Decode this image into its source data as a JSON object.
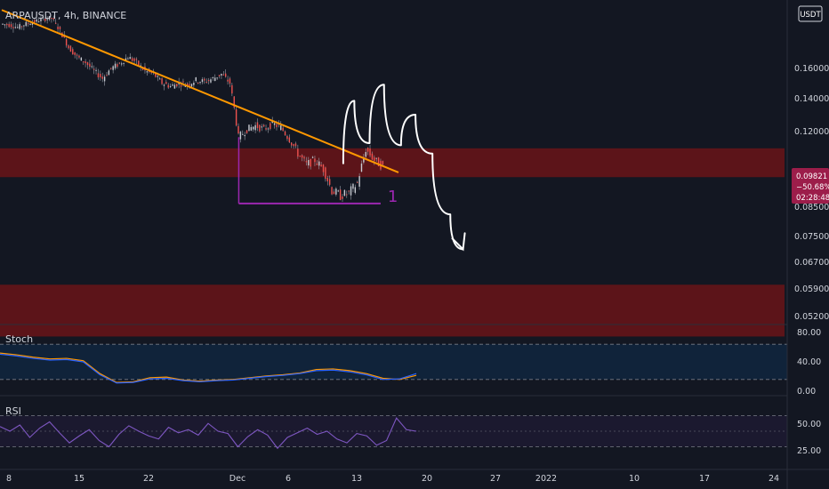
{
  "chart_data": {
    "type": "candlestick",
    "title": "ARPAUSDT, 4h, BINANCE",
    "symbol": "ARPAUSDT",
    "interval": "4h",
    "exchange": "BINANCE",
    "currency_badge": "USDT",
    "x_ticks": [
      "8",
      "15",
      "22",
      "Dec",
      "6",
      "13",
      "20",
      "27",
      "2022",
      "10",
      "17",
      "24"
    ],
    "y_ticks": [
      "0.16000",
      "0.14000",
      "0.12000",
      "0.09821",
      "0.08500",
      "0.07500",
      "0.06700",
      "0.05900",
      "0.05200"
    ],
    "ylim": [
      0.05,
      0.2
    ],
    "last_price": {
      "value": "0.09821",
      "change": "−50.68%",
      "countdown": "02:28:48",
      "color": "#9c1d4a"
    },
    "price_series": [
      0.187,
      0.186,
      0.184,
      0.187,
      0.189,
      0.191,
      0.192,
      0.181,
      0.168,
      0.161,
      0.157,
      0.151,
      0.146,
      0.153,
      0.156,
      0.161,
      0.157,
      0.151,
      0.149,
      0.143,
      0.141,
      0.143,
      0.142,
      0.145,
      0.144,
      0.146,
      0.149,
      0.143,
      0.112,
      0.116,
      0.118,
      0.116,
      0.119,
      0.117,
      0.111,
      0.104,
      0.099,
      0.101,
      0.097,
      0.088,
      0.086,
      0.087,
      0.091,
      0.106,
      0.101,
      0.098
    ],
    "resistance_zones": [
      {
        "y_top": 0.1065,
        "y_bottom": 0.0935,
        "color": "#5c1419"
      },
      {
        "y_top": 0.0575,
        "y_bottom": 0.0455,
        "color": "#5c1419"
      }
    ],
    "trendline": {
      "color": "#ff9800",
      "points": [
        [
          0,
          0.199
        ],
        [
          46.7,
          0.0955
        ]
      ]
    },
    "support_marker": {
      "label": "1",
      "color": "#9c27b0",
      "y": 0.083,
      "from_index": 27.9,
      "to_index": 44.6
    },
    "projection_path": [
      [
        40.2,
        0.0995
      ],
      [
        41.5,
        0.132
      ],
      [
        43.3,
        0.109
      ],
      [
        45.0,
        0.142
      ],
      [
        47.0,
        0.108
      ],
      [
        48.7,
        0.124
      ],
      [
        50.7,
        0.104
      ],
      [
        52.8,
        0.079
      ],
      [
        54.3,
        0.0675
      ]
    ],
    "stoch": {
      "label": "Stoch",
      "y_ticks": [
        "80.00",
        "40.00",
        "0.00"
      ],
      "ylim": [
        0,
        100
      ],
      "bands": [
        80,
        20
      ],
      "series": [
        {
          "color": "#ff9800",
          "values": [
            65,
            62,
            58,
            55,
            56,
            52,
            30,
            15,
            16,
            23,
            24,
            19,
            17,
            19,
            20,
            23,
            26,
            28,
            31,
            37,
            38,
            35,
            30,
            22,
            20,
            27
          ]
        },
        {
          "color": "#2962ff",
          "values": [
            63,
            60,
            56,
            53,
            54,
            50,
            28,
            14,
            15,
            21,
            22,
            18,
            16,
            18,
            19,
            22,
            25,
            27,
            30,
            35,
            36,
            33,
            28,
            20,
            21,
            30
          ]
        }
      ]
    },
    "rsi": {
      "label": "RSI",
      "y_ticks": [
        "50.00",
        "25.00"
      ],
      "ylim": [
        10,
        90
      ],
      "bands": [
        70,
        30
      ],
      "color": "#7e57c2",
      "values": [
        56,
        50,
        58,
        42,
        54,
        62,
        48,
        35,
        44,
        52,
        38,
        30,
        46,
        57,
        50,
        44,
        40,
        55,
        48,
        52,
        45,
        60,
        50,
        47,
        30,
        43,
        52,
        45,
        28,
        42,
        48,
        54,
        46,
        50,
        40,
        35,
        47,
        44,
        32,
        38,
        67,
        52,
        50
      ]
    }
  }
}
